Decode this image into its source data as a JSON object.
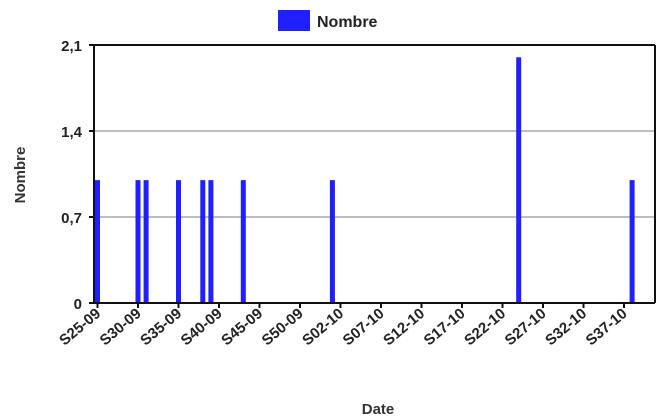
{
  "chart_data": {
    "type": "bar",
    "legend": {
      "position": "top-center",
      "entries": [
        {
          "name": "Nombre",
          "color": "#1f1fff"
        }
      ]
    },
    "xlabel": "Date",
    "ylabel": "Nombre",
    "ylim": [
      0,
      2.1
    ],
    "y_ticks": [
      "0",
      "0,7",
      "1,4",
      "2,1"
    ],
    "y_tick_values": [
      0,
      0.7,
      1.4,
      2.1
    ],
    "grid": true,
    "x_ticks": [
      "S25-09",
      "S30-09",
      "S35-09",
      "S40-09",
      "S45-09",
      "S50-09",
      "S02-10",
      "S07-10",
      "S12-10",
      "S17-10",
      "S22-10",
      "S27-10",
      "S32-10",
      "S37-10"
    ],
    "series": [
      {
        "name": "Nombre",
        "color": "#1f1fff",
        "points": [
          {
            "week": "S25-09",
            "value": 1
          },
          {
            "week": "S30-09",
            "value": 1
          },
          {
            "week": "S31-09",
            "value": 1
          },
          {
            "week": "S35-09",
            "value": 1
          },
          {
            "week": "S38-09",
            "value": 1
          },
          {
            "week": "S39-09",
            "value": 1
          },
          {
            "week": "S43-09",
            "value": 1
          },
          {
            "week": "S01-10",
            "value": 1
          },
          {
            "week": "S24-10",
            "value": 2
          },
          {
            "week": "S38-10",
            "value": 1
          }
        ]
      }
    ]
  }
}
